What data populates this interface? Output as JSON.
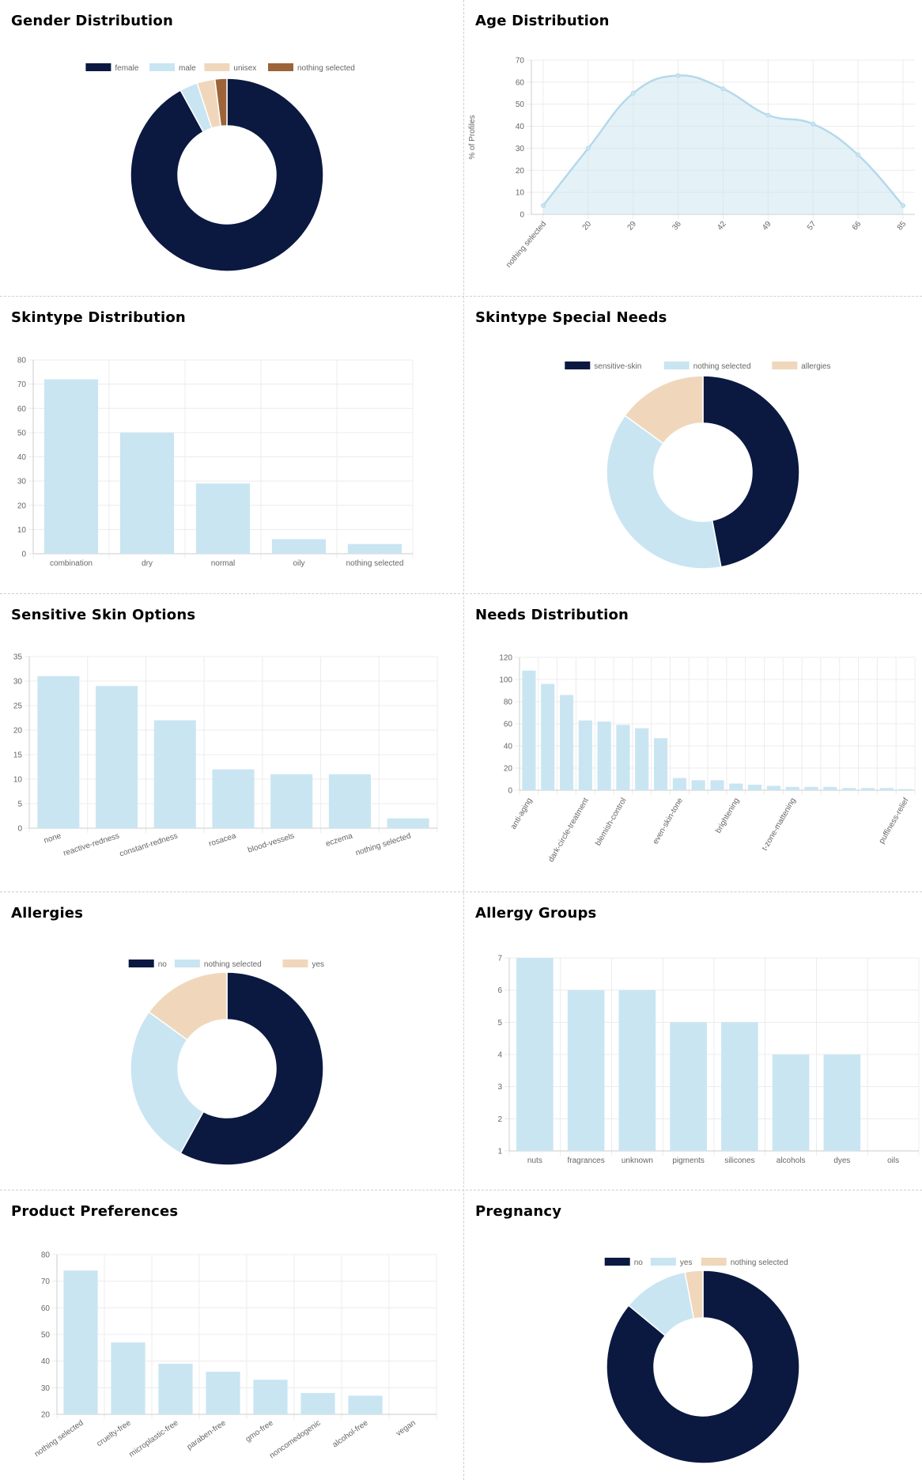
{
  "colors": {
    "navy": "#0b1941",
    "light_blue": "#c9e5f2",
    "bar_border": "#b5d9ea",
    "peach": "#f0d7bb",
    "brown": "#9c6438",
    "grid": "#ececec",
    "axis_text": "#666666"
  },
  "chart_data": [
    {
      "id": "gender",
      "type": "pie",
      "title": "Gender Distribution",
      "labels": [
        "female",
        "male",
        "unisex",
        "nothing selected"
      ],
      "values": [
        92,
        3,
        3,
        2
      ],
      "color_keys": [
        "navy",
        "light_blue",
        "peach",
        "brown"
      ]
    },
    {
      "id": "age",
      "type": "area",
      "title": "Age Distribution",
      "categories": [
        "nothing selected",
        "20",
        "29",
        "36",
        "42",
        "49",
        "57",
        "66",
        "85"
      ],
      "values": [
        4,
        30,
        55,
        63,
        57,
        45,
        41,
        27,
        4
      ],
      "ylabel": "% of Profiles",
      "ylim": [
        0,
        70
      ],
      "yticks": [
        0,
        10,
        20,
        30,
        40,
        50,
        60,
        70
      ]
    },
    {
      "id": "skintype",
      "type": "bar",
      "title": "Skintype Distribution",
      "categories": [
        "combination",
        "dry",
        "normal",
        "oily",
        "nothing selected"
      ],
      "values": [
        72,
        50,
        29,
        6,
        4
      ],
      "ylim": [
        0,
        80
      ],
      "yticks": [
        0,
        10,
        20,
        30,
        40,
        50,
        60,
        70,
        80
      ]
    },
    {
      "id": "special_needs",
      "type": "pie",
      "title": "Skintype Special Needs",
      "labels": [
        "sensitive-skin",
        "nothing selected",
        "allergies"
      ],
      "values": [
        47,
        38,
        15
      ],
      "color_keys": [
        "navy",
        "light_blue",
        "peach"
      ]
    },
    {
      "id": "sensitive",
      "type": "bar",
      "title": "Sensitive Skin Options",
      "categories": [
        "none",
        "reactive-redness",
        "constant-redness",
        "rosacea",
        "blood-vessels",
        "eczema",
        "nothing selected"
      ],
      "values": [
        31,
        29,
        22,
        12,
        11,
        11,
        2
      ],
      "ylim": [
        0,
        35
      ],
      "yticks": [
        0,
        5,
        10,
        15,
        20,
        25,
        30,
        35
      ]
    },
    {
      "id": "needs",
      "type": "bar",
      "title": "Needs Distribution",
      "categories": [
        "anti-aging",
        "",
        "",
        "dark-circle-treatment",
        "",
        "blemish-control",
        "",
        "",
        "even-skin-tone",
        "",
        "",
        "brightening",
        "",
        "",
        "t-zone-mattening",
        "",
        "",
        "",
        "",
        "",
        "puffiness-relief"
      ],
      "values": [
        108,
        96,
        86,
        63,
        62,
        59,
        56,
        47,
        11,
        9,
        9,
        6,
        5,
        4,
        3,
        3,
        3,
        2,
        2,
        2,
        1
      ],
      "ylim": [
        0,
        120
      ],
      "yticks": [
        0,
        20,
        40,
        60,
        80,
        100,
        120
      ]
    },
    {
      "id": "allergies",
      "type": "pie",
      "title": "Allergies",
      "labels": [
        "no",
        "nothing selected",
        "yes"
      ],
      "values": [
        58,
        27,
        15
      ],
      "color_keys": [
        "navy",
        "light_blue",
        "peach"
      ]
    },
    {
      "id": "allergy_groups",
      "type": "bar",
      "title": "Allergy Groups",
      "categories": [
        "nuts",
        "fragrances",
        "unknown",
        "pigments",
        "silicones",
        "alcohols",
        "dyes",
        "oils"
      ],
      "values": [
        7,
        6,
        6,
        5,
        5,
        4,
        4,
        1
      ],
      "ylim": [
        1,
        7
      ],
      "yticks": [
        1,
        2,
        3,
        4,
        5,
        6,
        7
      ]
    },
    {
      "id": "product_prefs",
      "type": "bar",
      "title": "Product Preferences",
      "categories": [
        "nothing selected",
        "cruelty-free",
        "microplastic-free",
        "paraben-free",
        "gmo-free",
        "noncomedogenic",
        "alcohol-free",
        "vegan"
      ],
      "values": [
        74,
        47,
        39,
        36,
        33,
        28,
        27,
        20
      ],
      "ylim": [
        20,
        80
      ],
      "yticks": [
        20,
        30,
        40,
        50,
        60,
        70,
        80
      ]
    },
    {
      "id": "pregnancy",
      "type": "pie",
      "title": "Pregnancy",
      "labels": [
        "no",
        "yes",
        "nothing selected"
      ],
      "values": [
        86,
        11,
        3
      ],
      "color_keys": [
        "navy",
        "light_blue",
        "peach"
      ]
    }
  ]
}
